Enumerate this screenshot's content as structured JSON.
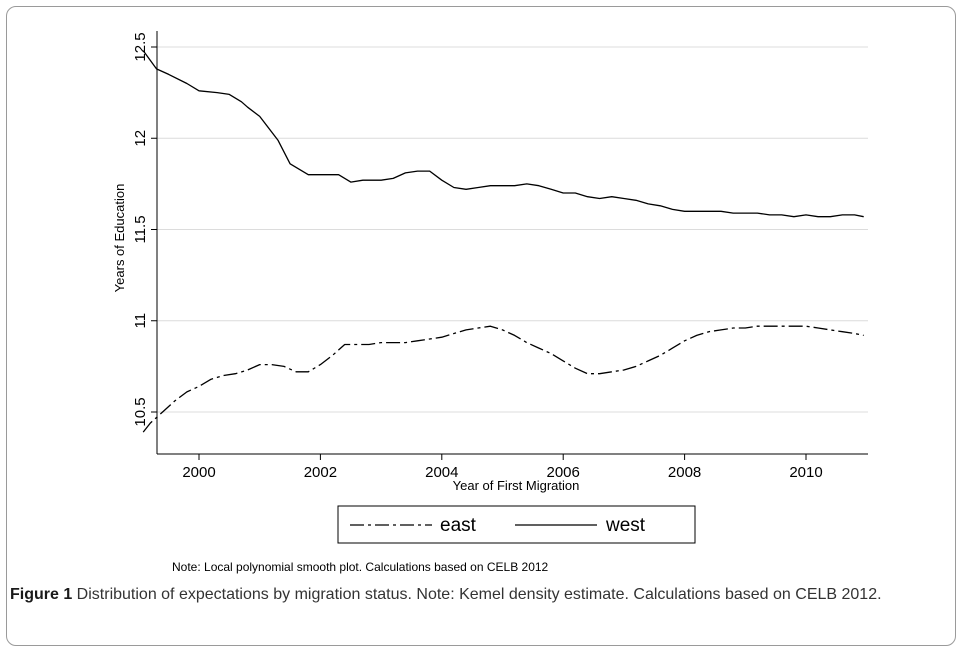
{
  "chart_data": {
    "type": "line",
    "xlabel": "Year of First Migration",
    "ylabel": "Years of Education",
    "xlim": [
      1999,
      2011
    ],
    "ylim": [
      10.4,
      12.5
    ],
    "xticks": [
      2000,
      2002,
      2004,
      2006,
      2008,
      2010
    ],
    "yticks": [
      10.5,
      11,
      11.5,
      12,
      12.5
    ],
    "xtick_labels": [
      "2000",
      "2002",
      "2004",
      "2006",
      "2008",
      "2010"
    ],
    "ytick_labels": [
      "10.5",
      "11",
      "11.5",
      "12",
      "12.5"
    ],
    "grid": "horizontal",
    "legend_position": "bottom",
    "series": [
      {
        "name": "east",
        "style": "dash-dot",
        "color": "#000000",
        "x": [
          1999.08,
          1999.2,
          1999.4,
          1999.6,
          1999.8,
          2000.0,
          2000.2,
          2000.4,
          2000.6,
          2000.8,
          2001.0,
          2001.2,
          2001.4,
          2001.6,
          2001.8,
          2002.0,
          2002.2,
          2002.4,
          2002.6,
          2002.8,
          2003.0,
          2003.2,
          2003.4,
          2003.6,
          2003.8,
          2004.0,
          2004.2,
          2004.4,
          2004.6,
          2004.8,
          2005.0,
          2005.2,
          2005.4,
          2005.6,
          2005.8,
          2006.0,
          2006.2,
          2006.4,
          2006.6,
          2006.8,
          2007.0,
          2007.2,
          2007.4,
          2007.6,
          2007.8,
          2008.0,
          2008.2,
          2008.4,
          2008.6,
          2008.8,
          2009.0,
          2009.2,
          2009.4,
          2009.6,
          2009.8,
          2010.0,
          2010.2,
          2010.4,
          2010.6,
          2010.8,
          2010.95
        ],
        "y": [
          10.39,
          10.44,
          10.5,
          10.56,
          10.61,
          10.64,
          10.68,
          10.7,
          10.71,
          10.73,
          10.76,
          10.76,
          10.75,
          10.72,
          10.72,
          10.76,
          10.81,
          10.87,
          10.87,
          10.87,
          10.88,
          10.88,
          10.88,
          10.89,
          10.9,
          10.91,
          10.93,
          10.95,
          10.96,
          10.97,
          10.95,
          10.92,
          10.88,
          10.85,
          10.82,
          10.78,
          10.74,
          10.71,
          10.71,
          10.72,
          10.73,
          10.75,
          10.78,
          10.81,
          10.85,
          10.89,
          10.92,
          10.94,
          10.95,
          10.96,
          10.96,
          10.97,
          10.97,
          10.97,
          10.97,
          10.97,
          10.96,
          10.95,
          10.94,
          10.93,
          10.92
        ]
      },
      {
        "name": "west",
        "style": "solid",
        "color": "#000000",
        "x": [
          1999.08,
          1999.3,
          1999.5,
          1999.8,
          2000.0,
          2000.3,
          2000.5,
          2000.7,
          2000.8,
          2001.0,
          2001.3,
          2001.5,
          2001.8,
          2002.0,
          2002.2,
          2002.3,
          2002.5,
          2002.7,
          2002.8,
          2003.0,
          2003.2,
          2003.4,
          2003.6,
          2003.8,
          2004.0,
          2004.2,
          2004.4,
          2004.6,
          2004.8,
          2005.0,
          2005.2,
          2005.4,
          2005.6,
          2005.8,
          2006.0,
          2006.2,
          2006.4,
          2006.6,
          2006.8,
          2007.0,
          2007.2,
          2007.4,
          2007.6,
          2007.8,
          2008.0,
          2008.2,
          2008.4,
          2008.6,
          2008.8,
          2009.0,
          2009.2,
          2009.4,
          2009.6,
          2009.8,
          2010.0,
          2010.2,
          2010.4,
          2010.6,
          2010.8,
          2010.95
        ],
        "y": [
          12.48,
          12.38,
          12.35,
          12.3,
          12.26,
          12.25,
          12.24,
          12.2,
          12.17,
          12.12,
          11.99,
          11.86,
          11.8,
          11.8,
          11.8,
          11.8,
          11.76,
          11.77,
          11.77,
          11.77,
          11.78,
          11.81,
          11.82,
          11.82,
          11.77,
          11.73,
          11.72,
          11.73,
          11.74,
          11.74,
          11.74,
          11.75,
          11.74,
          11.72,
          11.7,
          11.7,
          11.68,
          11.67,
          11.68,
          11.67,
          11.66,
          11.64,
          11.63,
          11.61,
          11.6,
          11.6,
          11.6,
          11.6,
          11.59,
          11.59,
          11.59,
          11.58,
          11.58,
          11.57,
          11.58,
          11.57,
          11.57,
          11.58,
          11.58,
          11.57
        ]
      }
    ],
    "note": "Note: Local polynomial smooth plot. Calculations based on CELB 2012"
  },
  "caption": {
    "label": "Figure 1",
    "text": " Distribution of expectations by migration status. Note: Kemel density estimate. Calculations based on CELB 2012."
  }
}
